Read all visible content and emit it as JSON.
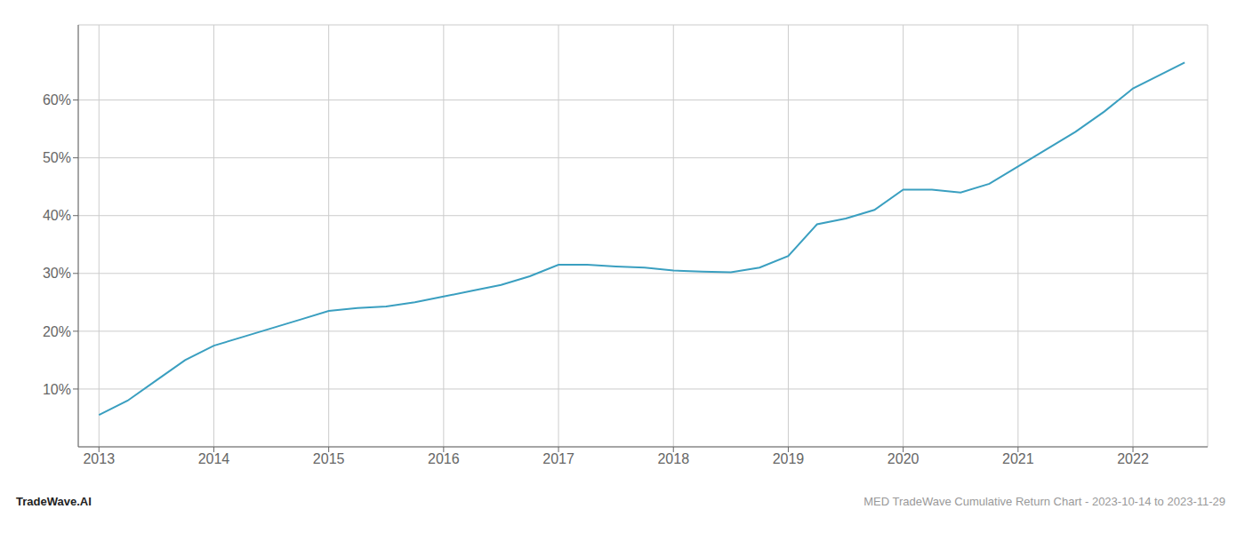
{
  "chart_data": {
    "type": "line",
    "x": [
      2013.0,
      2013.25,
      2013.5,
      2013.75,
      2014.0,
      2014.25,
      2014.5,
      2014.75,
      2015.0,
      2015.25,
      2015.5,
      2015.75,
      2016.0,
      2016.25,
      2016.5,
      2016.75,
      2017.0,
      2017.25,
      2017.5,
      2017.75,
      2018.0,
      2018.25,
      2018.5,
      2018.75,
      2019.0,
      2019.25,
      2019.5,
      2019.75,
      2020.0,
      2020.25,
      2020.5,
      2020.75,
      2021.0,
      2021.25,
      2021.5,
      2021.75,
      2022.0,
      2022.25,
      2022.45
    ],
    "values": [
      5.5,
      8.0,
      11.5,
      15.0,
      17.5,
      19.0,
      20.5,
      22.0,
      23.5,
      24.0,
      24.3,
      25.0,
      26.0,
      27.0,
      28.0,
      29.5,
      31.5,
      31.5,
      31.2,
      31.0,
      30.5,
      30.3,
      30.2,
      31.0,
      33.0,
      38.5,
      39.5,
      41.0,
      44.5,
      44.5,
      44.0,
      45.5,
      48.5,
      51.5,
      54.5,
      58.0,
      62.0,
      64.5,
      66.5
    ],
    "color": "#3a9fc0",
    "xlim": [
      2012.82,
      2022.65
    ],
    "ylim": [
      0,
      73
    ],
    "xticks": [
      2013,
      2014,
      2015,
      2016,
      2017,
      2018,
      2019,
      2020,
      2021,
      2022
    ],
    "yticks": [
      {
        "value": 10,
        "label": "10%"
      },
      {
        "value": 20,
        "label": "20%"
      },
      {
        "value": 30,
        "label": "30%"
      },
      {
        "value": 40,
        "label": "40%"
      },
      {
        "value": 50,
        "label": "50%"
      },
      {
        "value": 60,
        "label": "60%"
      }
    ],
    "grid": true,
    "annotations": [
      "TradeWave.AI",
      "MED TradeWave Cumulative Return Chart - 2023-10-14 to 2023-11-29"
    ]
  }
}
